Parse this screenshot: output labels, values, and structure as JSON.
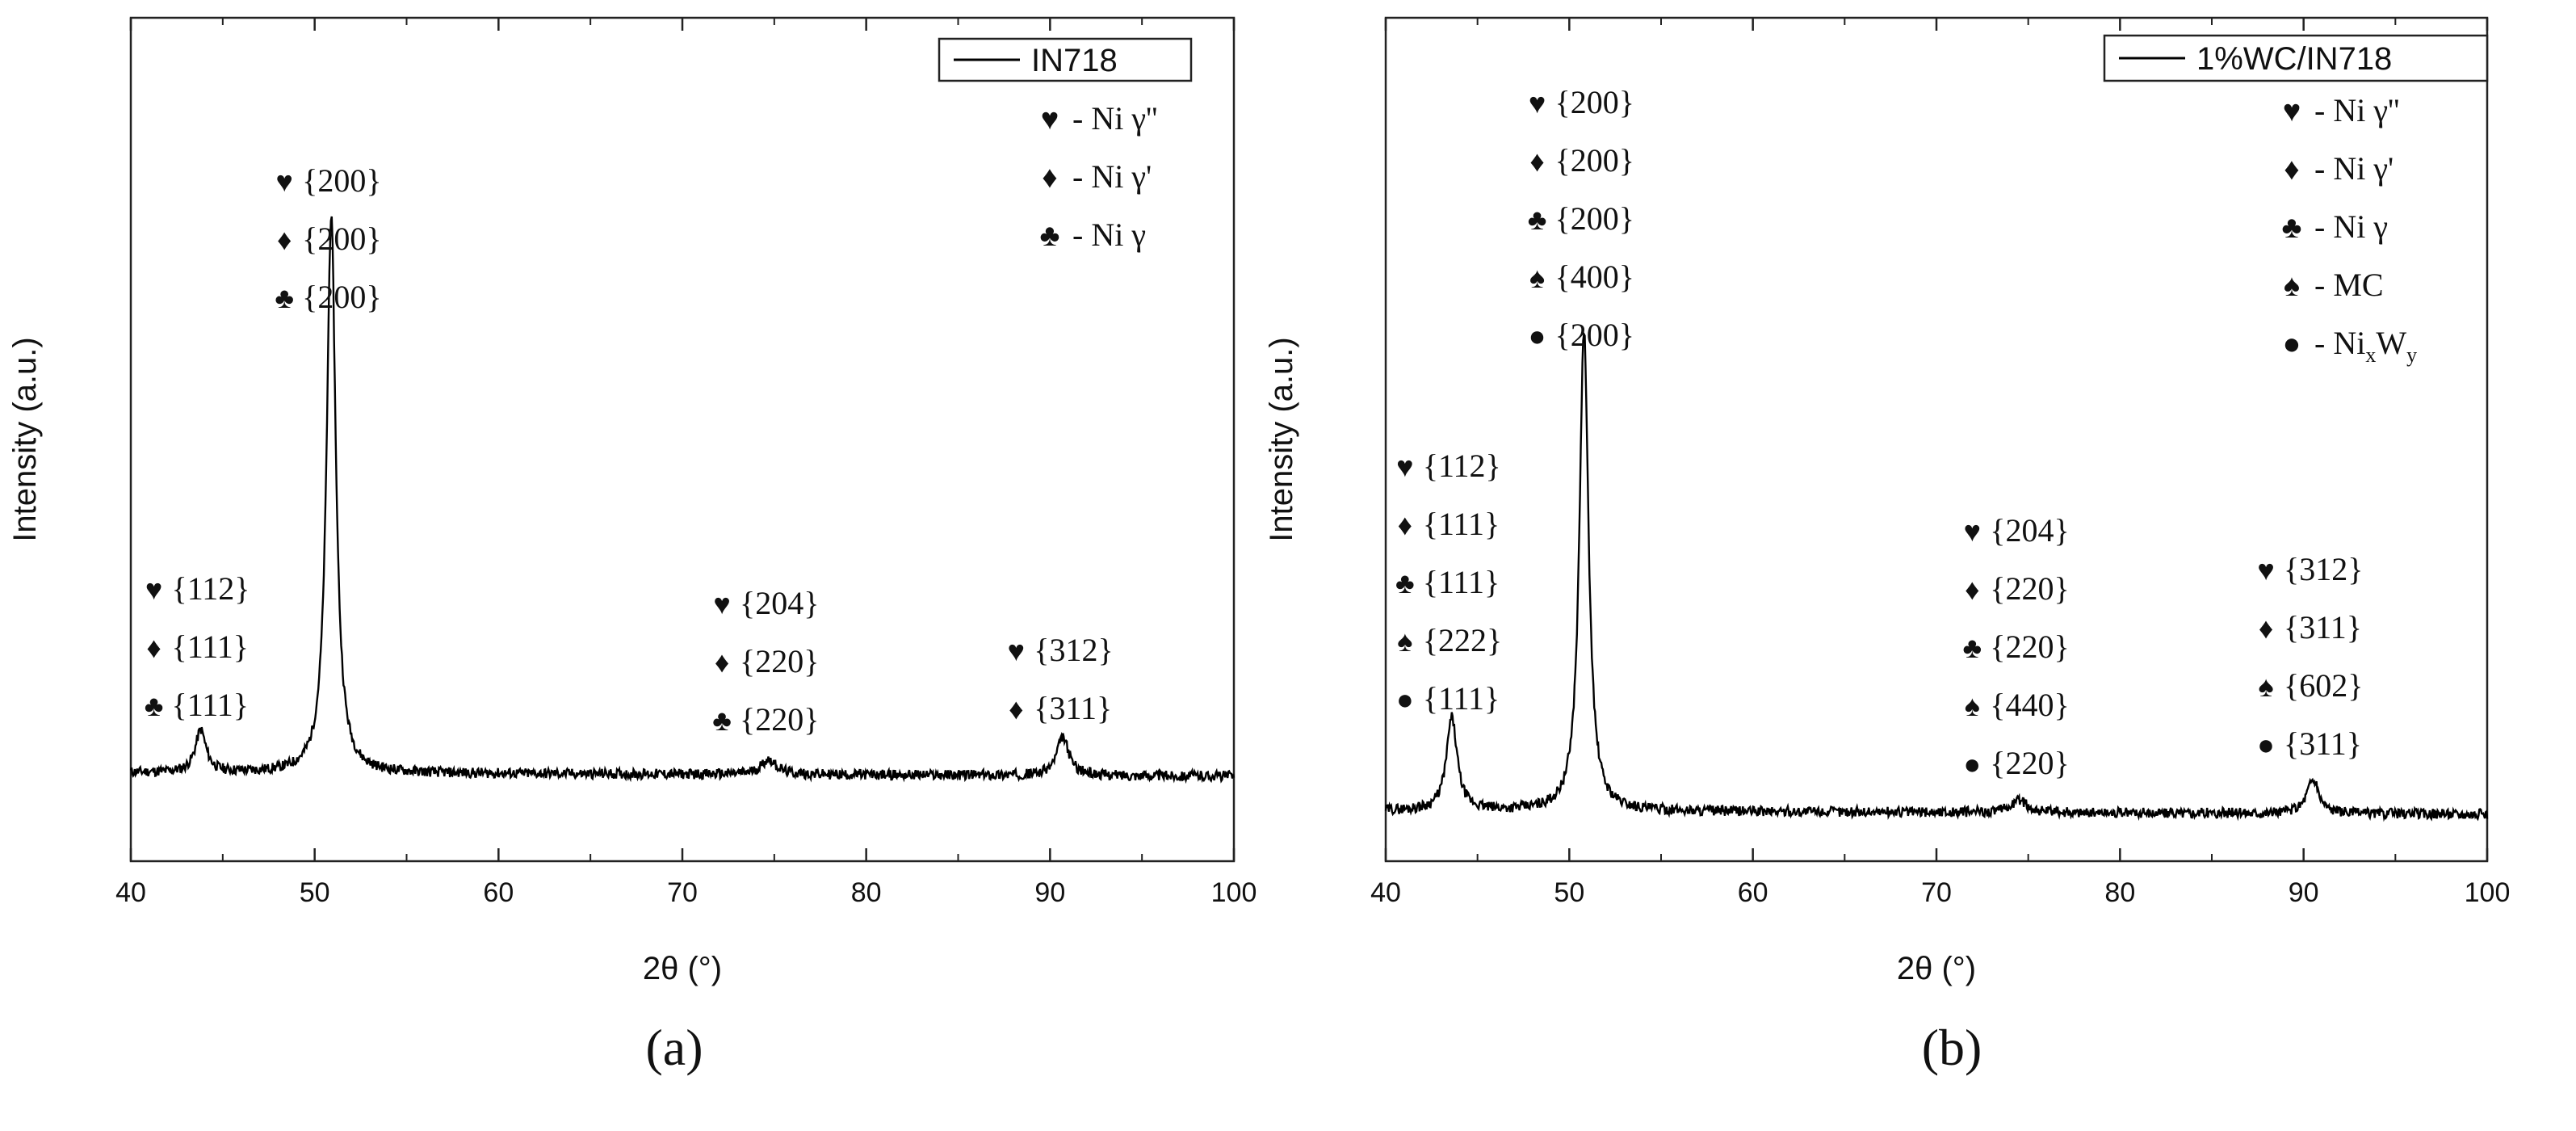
{
  "chart_data": [
    {
      "type": "line",
      "panel_label": "(a)",
      "xlabel": "2θ (°)",
      "ylabel": "Intensity (a.u.)",
      "xlim": [
        40,
        100
      ],
      "x_ticks": [
        "40",
        "50",
        "60",
        "70",
        "80",
        "90",
        "100"
      ],
      "y_ticks": [],
      "grid": false,
      "legend": {
        "placement": "top-right",
        "entries": [
          "IN718"
        ]
      },
      "series": [
        {
          "name": "IN718",
          "color": "#000000",
          "baseline": 0.105,
          "noise": 0.012,
          "peaks": [
            {
              "x": 43.8,
              "height": 0.05,
              "width": 0.35
            },
            {
              "x": 50.9,
              "height": 0.66,
              "width": 0.3
            },
            {
              "x": 74.7,
              "height": 0.018,
              "width": 0.5
            },
            {
              "x": 90.7,
              "height": 0.045,
              "width": 0.4
            }
          ]
        }
      ],
      "phase_key": [
        {
          "symbol": "♥",
          "label": "- Ni γ''"
        },
        {
          "symbol": "♦",
          "label": "- Ni γ'"
        },
        {
          "symbol": "♣",
          "label": "- Ni γ"
        }
      ],
      "annotations": [
        {
          "x": 43.8,
          "lines": [
            [
              "♥",
              "{112}"
            ],
            [
              "♦",
              "{111}"
            ],
            [
              "♣",
              "{111}"
            ]
          ]
        },
        {
          "x": 50.9,
          "lines": [
            [
              "♥",
              "{200}"
            ],
            [
              "♦",
              "{200}"
            ],
            [
              "♣",
              "{200}"
            ]
          ]
        },
        {
          "x": 74.7,
          "lines": [
            [
              "♥",
              "{204}"
            ],
            [
              "♦",
              "{220}"
            ],
            [
              "♣",
              "{220}"
            ]
          ]
        },
        {
          "x": 90.7,
          "lines": [
            [
              "♥",
              "{312}"
            ],
            [
              "♦",
              "{311}"
            ]
          ]
        }
      ]
    },
    {
      "type": "line",
      "panel_label": "(b)",
      "xlabel": "2θ (°)",
      "ylabel": "Intensity (a.u.)",
      "xlim": [
        40,
        100
      ],
      "x_ticks": [
        "40",
        "50",
        "60",
        "70",
        "80",
        "90",
        "100"
      ],
      "y_ticks": [],
      "grid": false,
      "legend": {
        "placement": "top-right",
        "entries": [
          "1%WC/IN718"
        ]
      },
      "series": [
        {
          "name": "1%WC/IN718",
          "color": "#000000",
          "baseline": 0.06,
          "noise": 0.012,
          "peaks": [
            {
              "x": 43.6,
              "height": 0.11,
              "width": 0.35
            },
            {
              "x": 50.8,
              "height": 0.57,
              "width": 0.3
            },
            {
              "x": 74.5,
              "height": 0.015,
              "width": 0.5
            },
            {
              "x": 90.5,
              "height": 0.04,
              "width": 0.4
            }
          ]
        }
      ],
      "phase_key": [
        {
          "symbol": "♥",
          "label": "- Ni γ''"
        },
        {
          "symbol": "♦",
          "label": "- Ni γ'"
        },
        {
          "symbol": "♣",
          "label": "- Ni γ"
        },
        {
          "symbol": "♠",
          "label": "- MC"
        },
        {
          "symbol": "●",
          "label": "- Ni",
          "sub1": "x",
          "mid": "W",
          "sub2": "y"
        }
      ],
      "annotations": [
        {
          "x": 43.6,
          "lines": [
            [
              "♥",
              "{112}"
            ],
            [
              "♦",
              "{111}"
            ],
            [
              "♣",
              "{111}"
            ],
            [
              "♠",
              "{222}"
            ],
            [
              "●",
              "{111}"
            ]
          ]
        },
        {
          "x": 50.8,
          "lines": [
            [
              "♥",
              "{200}"
            ],
            [
              "♦",
              "{200}"
            ],
            [
              "♣",
              "{200}"
            ],
            [
              "♠",
              "{400}"
            ],
            [
              "●",
              "{200}"
            ]
          ]
        },
        {
          "x": 74.5,
          "lines": [
            [
              "♥",
              "{204}"
            ],
            [
              "♦",
              "{220}"
            ],
            [
              "♣",
              "{220}"
            ],
            [
              "♠",
              "{440}"
            ],
            [
              "●",
              "{220}"
            ]
          ]
        },
        {
          "x": 90.5,
          "lines": [
            [
              "♥",
              "{312}"
            ],
            [
              "♦",
              "{311}"
            ],
            [
              "♠",
              "{602}"
            ],
            [
              "●",
              "{311}"
            ]
          ]
        }
      ]
    }
  ]
}
